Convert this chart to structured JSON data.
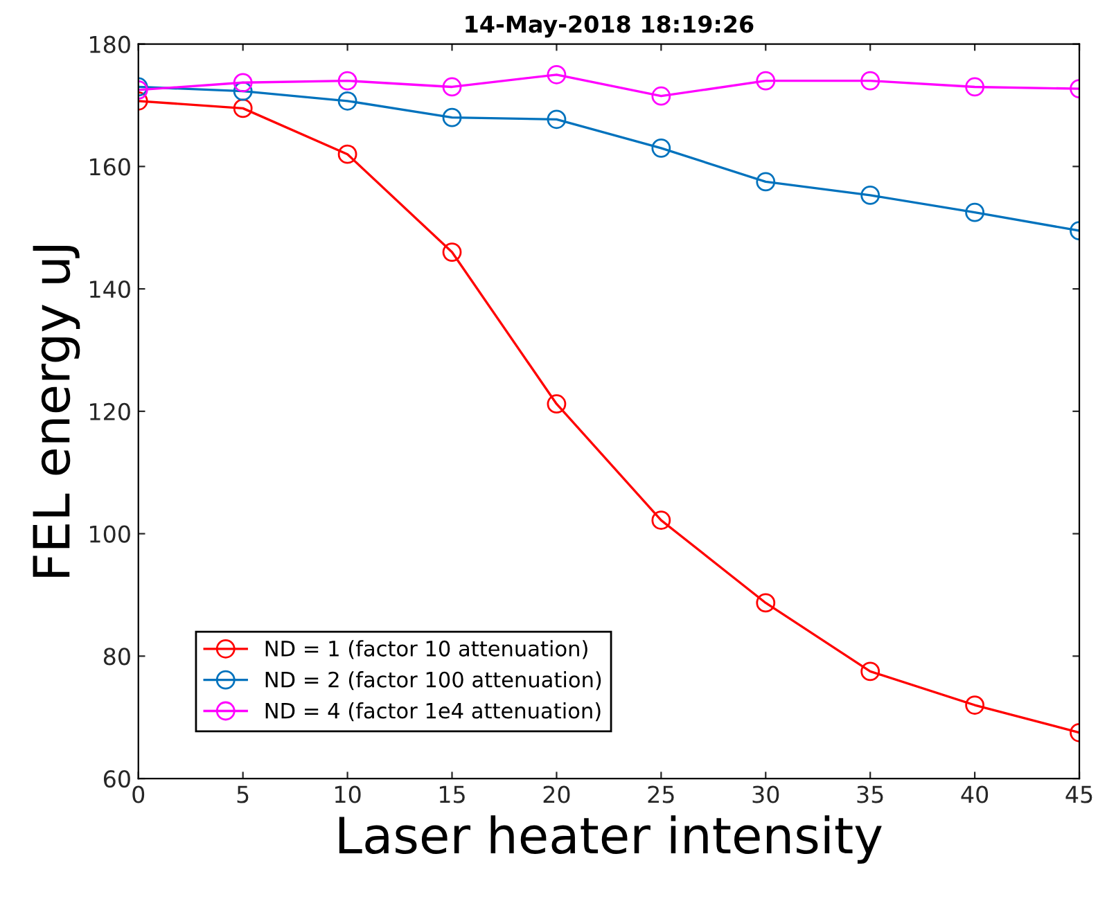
{
  "chart_data": {
    "type": "line",
    "title": "14-May-2018 18:19:26",
    "xlabel": "Laser heater intensity",
    "ylabel": "FEL energy uJ",
    "x": [
      0,
      5,
      10,
      15,
      20,
      25,
      30,
      35,
      40,
      45
    ],
    "series": [
      {
        "name": "ND = 1 (factor 10 attenuation)",
        "color": "#ff0000",
        "values": [
          170.7,
          169.5,
          162,
          146,
          121.2,
          102.2,
          88.7,
          77.5,
          72,
          67.5
        ]
      },
      {
        "name": "ND = 2 (factor 100 attenuation)",
        "color": "#0072bd",
        "values": [
          173,
          172.3,
          170.7,
          168,
          167.7,
          163,
          157.5,
          155.3,
          152.5,
          149.5
        ]
      },
      {
        "name": "ND = 4 (factor 1e4 attenuation)",
        "color": "#ff00ff",
        "values": [
          172.5,
          173.7,
          174,
          173,
          175,
          171.5,
          174,
          174,
          173,
          172.7
        ]
      }
    ],
    "xlim": [
      0,
      45
    ],
    "ylim": [
      60,
      180
    ],
    "xticks": [
      0,
      5,
      10,
      15,
      20,
      25,
      30,
      35,
      40,
      45
    ],
    "yticks": [
      60,
      80,
      100,
      120,
      140,
      160,
      180
    ],
    "marker": "circle",
    "line_style": "solid",
    "grid": false,
    "legend": "bottom left"
  }
}
